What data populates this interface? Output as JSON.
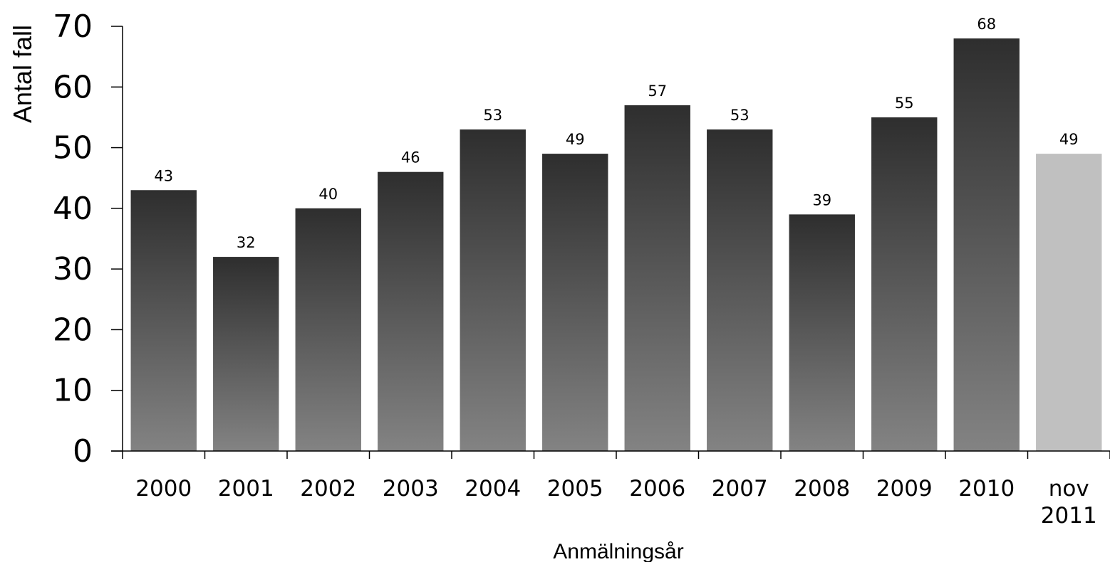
{
  "chart_data": {
    "type": "bar",
    "title": "",
    "xlabel": "Anmälningsår",
    "ylabel": "Antal fall",
    "ylim": [
      0,
      70
    ],
    "yticks": [
      "0",
      "10",
      "20",
      "30",
      "40",
      "50",
      "60",
      "70"
    ],
    "categories": [
      [
        "2000"
      ],
      [
        "2001"
      ],
      [
        "2002"
      ],
      [
        "2003"
      ],
      [
        "2004"
      ],
      [
        "2005"
      ],
      [
        "2006"
      ],
      [
        "2007"
      ],
      [
        "2008"
      ],
      [
        "2009"
      ],
      [
        "2010"
      ],
      [
        "nov",
        "2011"
      ]
    ],
    "values": [
      43,
      32,
      40,
      46,
      53,
      49,
      57,
      53,
      39,
      55,
      68,
      49
    ],
    "data_labels": [
      "43",
      "32",
      "40",
      "46",
      "53",
      "49",
      "57",
      "53",
      "39",
      "55",
      "68",
      "49"
    ],
    "grid": false,
    "legend": "none",
    "colors": {
      "bar_top": "#2e2e2e",
      "bar_bottom": "#838383",
      "highlight_bar": "#c0c0c0",
      "axis": "#000000"
    },
    "highlight_index": 11
  }
}
